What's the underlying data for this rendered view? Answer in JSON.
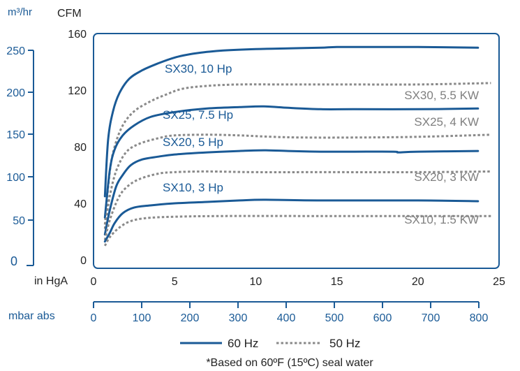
{
  "chart_data": {
    "type": "line",
    "unit_labels": {
      "flow_metric": "m³/hr",
      "flow_imperial": "CFM",
      "vacuum_inhg": "in HgA",
      "vacuum_mbar": "mbar abs"
    },
    "axes": {
      "cfm": {
        "range": [
          0,
          160
        ],
        "ticks": [
          "0",
          "40",
          "80",
          "120",
          "160"
        ],
        "grid": false
      },
      "m3hr": {
        "ticks": [
          "0",
          "50",
          "100",
          "150",
          "200",
          "250"
        ]
      },
      "inhg": {
        "range": [
          0,
          25
        ],
        "ticks": [
          "0",
          "5",
          "10",
          "15",
          "20",
          "25"
        ]
      },
      "mbar": {
        "range": [
          0,
          800
        ],
        "ticks": [
          "0",
          "100",
          "200",
          "300",
          "400",
          "500",
          "600",
          "700",
          "800"
        ]
      }
    },
    "series": [
      {
        "name": "SX30, 10 Hp",
        "style": "60 Hz",
        "points": [
          [
            0.7,
            45
          ],
          [
            0.9,
            85
          ],
          [
            1.2,
            105
          ],
          [
            1.6,
            118
          ],
          [
            2.2,
            128
          ],
          [
            3,
            134
          ],
          [
            4,
            139
          ],
          [
            5,
            143
          ],
          [
            6,
            145.5
          ],
          [
            7,
            147
          ],
          [
            8,
            148
          ],
          [
            10,
            149
          ],
          [
            12,
            149.5
          ],
          [
            14,
            150
          ],
          [
            15,
            150.5
          ],
          [
            17,
            150.5
          ],
          [
            20,
            150.5
          ],
          [
            23.7,
            150
          ]
        ]
      },
      {
        "name": "SX30, 5.5 KW",
        "style": "50 Hz",
        "points": [
          [
            0.7,
            25
          ],
          [
            1,
            62
          ],
          [
            1.3,
            80
          ],
          [
            1.8,
            95
          ],
          [
            2.5,
            105
          ],
          [
            3.5,
            112
          ],
          [
            4.5,
            117
          ],
          [
            5.5,
            121
          ],
          [
            7,
            123
          ],
          [
            9,
            124
          ],
          [
            12,
            124
          ],
          [
            16,
            124
          ],
          [
            20,
            124
          ],
          [
            24.5,
            125
          ]
        ]
      },
      {
        "name": "SX25, 7.5 Hp",
        "style": "60 Hz",
        "points": [
          [
            0.7,
            30
          ],
          [
            1,
            63
          ],
          [
            1.3,
            78
          ],
          [
            1.8,
            88
          ],
          [
            2.5,
            95
          ],
          [
            3.5,
            101
          ],
          [
            5,
            104.5
          ],
          [
            7,
            107
          ],
          [
            9,
            108
          ],
          [
            10.5,
            108.5
          ],
          [
            12,
            107.5
          ],
          [
            14,
            106.5
          ],
          [
            16,
            106.5
          ],
          [
            20,
            106.5
          ],
          [
            23.7,
            107
          ]
        ]
      },
      {
        "name": "SX25, 4 KW",
        "style": "50 Hz",
        "points": [
          [
            0.7,
            22
          ],
          [
            1,
            45
          ],
          [
            1.4,
            63
          ],
          [
            2,
            76
          ],
          [
            2.8,
            82
          ],
          [
            4,
            86
          ],
          [
            5,
            88
          ],
          [
            7,
            88.5
          ],
          [
            9,
            88
          ],
          [
            11,
            87
          ],
          [
            13,
            86.5
          ],
          [
            16,
            86.5
          ],
          [
            20,
            87
          ],
          [
            24.5,
            88.5
          ]
        ]
      },
      {
        "name": "SX20, 5 Hp",
        "style": "60 Hz",
        "points": [
          [
            0.7,
            18
          ],
          [
            1,
            35
          ],
          [
            1.4,
            52
          ],
          [
            1.8,
            60
          ],
          [
            2.3,
            67
          ],
          [
            3,
            71
          ],
          [
            4,
            73
          ],
          [
            5,
            74.5
          ],
          [
            7,
            76
          ],
          [
            9,
            77
          ],
          [
            10.5,
            77.5
          ],
          [
            12,
            77
          ],
          [
            14,
            76.5
          ],
          [
            16,
            76.5
          ],
          [
            18.5,
            76.5
          ],
          [
            18.8,
            76
          ],
          [
            20,
            76.5
          ],
          [
            23.7,
            77
          ]
        ]
      },
      {
        "name": "SX20, 3 KW",
        "style": "50 Hz",
        "points": [
          [
            0.7,
            14
          ],
          [
            1,
            28
          ],
          [
            1.5,
            43
          ],
          [
            2,
            51
          ],
          [
            2.8,
            57
          ],
          [
            4,
            61
          ],
          [
            5,
            62
          ],
          [
            7,
            62.5
          ],
          [
            10,
            62
          ],
          [
            14,
            62
          ],
          [
            20,
            62
          ],
          [
            24.5,
            62.5
          ]
        ]
      },
      {
        "name": "SX10, 3 Hp",
        "style": "60 Hz",
        "points": [
          [
            0.7,
            13
          ],
          [
            1,
            19
          ],
          [
            1.3,
            26
          ],
          [
            1.8,
            33
          ],
          [
            2.5,
            37
          ],
          [
            3.5,
            38.5
          ],
          [
            5,
            40
          ],
          [
            7,
            41
          ],
          [
            9,
            42
          ],
          [
            10.5,
            42.5
          ],
          [
            14,
            42
          ],
          [
            20,
            42
          ],
          [
            23.7,
            41.5
          ]
        ]
      },
      {
        "name": "SX10, 1.5 KW",
        "style": "50 Hz",
        "points": [
          [
            0.7,
            10
          ],
          [
            1,
            16
          ],
          [
            1.5,
            22
          ],
          [
            2.2,
            27
          ],
          [
            3.2,
            29.5
          ],
          [
            5,
            30.5
          ],
          [
            8,
            31
          ],
          [
            14,
            31
          ],
          [
            20,
            31
          ],
          [
            24.5,
            31
          ]
        ]
      }
    ],
    "legend": [
      {
        "label": "60 Hz",
        "color": "#1a5a96",
        "dash": "solid"
      },
      {
        "label": "50 Hz",
        "color": "#8a8a8a",
        "dash": "dotted"
      }
    ],
    "legend_position": "bottom-center",
    "footnote": "*Based on 60ºF (15ºC) seal water",
    "colors": {
      "primary_axis": "#1a5a96",
      "text": "#222222",
      "dotted_series": "#8a8a8a",
      "label_grey": "#7f7f7f"
    }
  }
}
